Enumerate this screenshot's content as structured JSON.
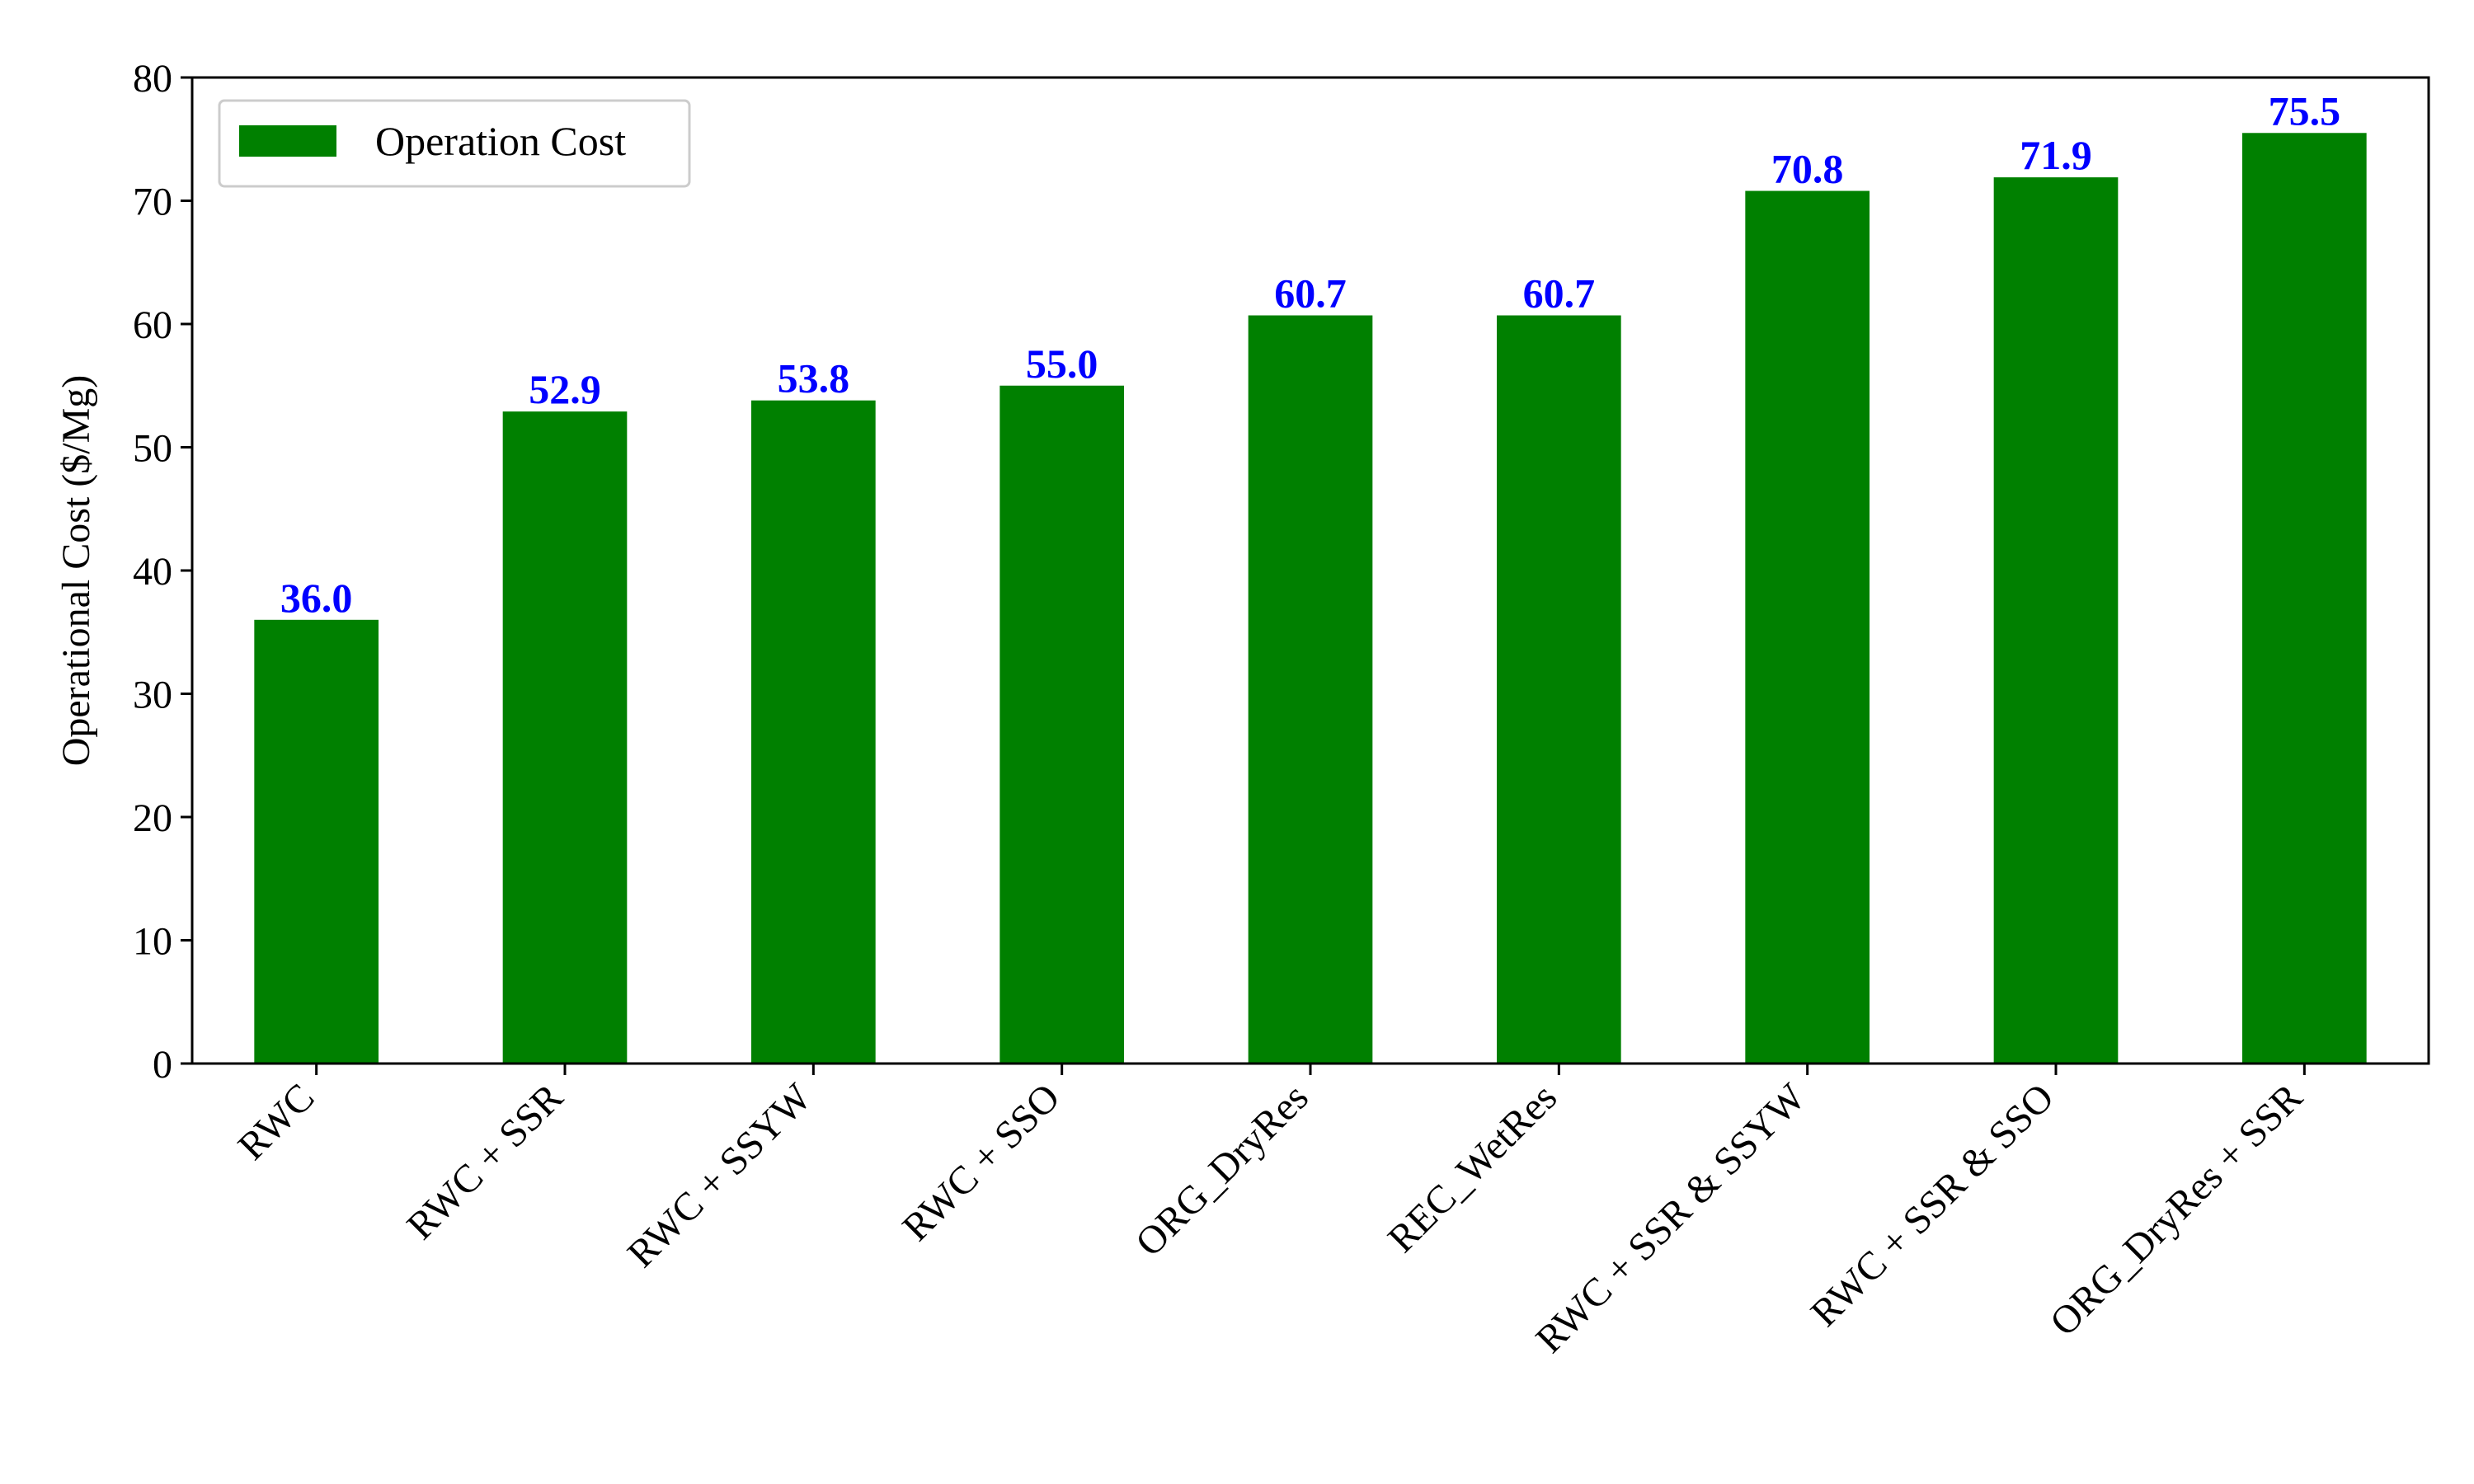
{
  "chart_data": {
    "type": "bar",
    "ylabel": "Operational Cost ($/Mg)",
    "ylim": [
      0,
      80
    ],
    "yticks": [
      0,
      10,
      20,
      30,
      40,
      50,
      60,
      70,
      80
    ],
    "grid": false,
    "legend_position": "top-left",
    "categories": [
      "RWC",
      "RWC + SSR",
      "RWC + SSYW",
      "RWC + SSO",
      "ORG_DryRes",
      "REC_WetRes",
      "RWC + SSR & SSYW",
      "RWC + SSR & SSO",
      "ORG_DryRes + SSR"
    ],
    "series": [
      {
        "name": "Operation Cost",
        "color": "#008000",
        "values": [
          36.0,
          52.9,
          53.8,
          55.0,
          60.7,
          60.7,
          70.8,
          71.9,
          75.5
        ]
      }
    ],
    "data_labels": [
      "36.0",
      "52.9",
      "53.8",
      "55.0",
      "60.7",
      "60.7",
      "70.8",
      "71.9",
      "75.5"
    ],
    "data_label_color": "#0000ff"
  }
}
